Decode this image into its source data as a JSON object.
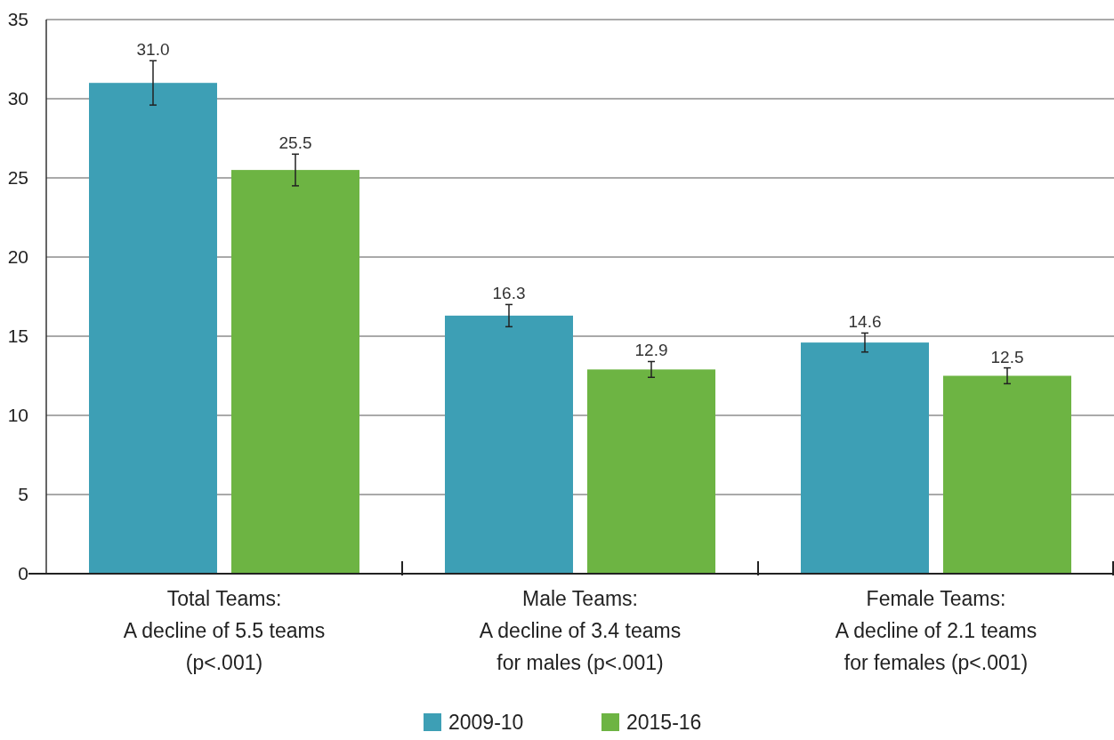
{
  "chart_data": {
    "type": "bar",
    "categories": [
      "Total Teams:\nA decline of 5.5 teams\n(p<.001)",
      "Male Teams:\nA decline of 3.4 teams\nfor males (p<.001)",
      "Female Teams:\nA decline of 2.1 teams\nfor females (p<.001)"
    ],
    "series": [
      {
        "name": "2009-10",
        "color": "#3d9fb5",
        "values": [
          31.0,
          16.3,
          14.6
        ],
        "value_labels": [
          "31.0",
          "16.3",
          "14.6"
        ],
        "errors": [
          1.4,
          0.7,
          0.6
        ]
      },
      {
        "name": "2015-16",
        "color": "#6db443",
        "values": [
          25.5,
          12.9,
          12.5
        ],
        "value_labels": [
          "25.5",
          "12.9",
          "12.5"
        ],
        "errors": [
          1.0,
          0.5,
          0.5
        ]
      }
    ],
    "ylim": [
      0,
      35
    ],
    "yticks": [
      0,
      5,
      10,
      15,
      20,
      25,
      30,
      35
    ],
    "grid": "y",
    "legend": "bottom"
  }
}
